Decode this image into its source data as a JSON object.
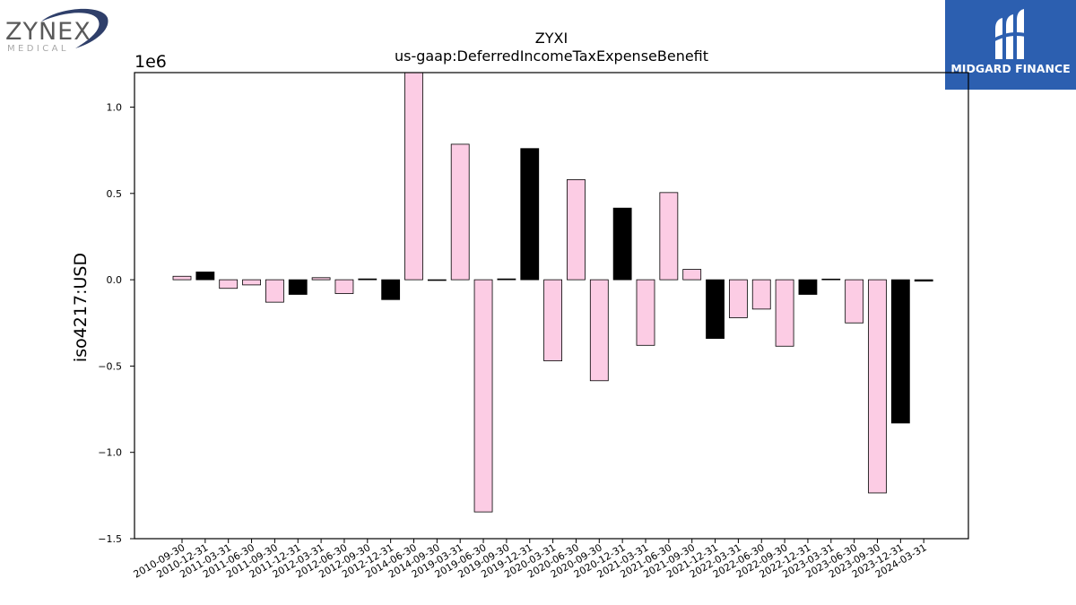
{
  "logos": {
    "left": {
      "name": "ZYNEX",
      "sub": "MEDICAL"
    },
    "right": {
      "name": "MIDGARD FINANCE"
    }
  },
  "chart_data": {
    "type": "bar",
    "title": "ZYXI",
    "subtitle": "us-gaap:DeferredIncomeTaxExpenseBenefit",
    "xlabel": "",
    "ylabel": "iso4217:USD",
    "y_multiplier_label": "1e6",
    "ylim": [
      -1.5,
      1.2
    ],
    "yticks": [
      -1.5,
      -1.0,
      -0.5,
      0.0,
      0.5,
      1.0
    ],
    "ytick_labels": [
      "−1.5",
      "−1.0",
      "−0.5",
      "0.0",
      "0.5",
      "1.0"
    ],
    "grid": false,
    "legend": "none",
    "colors": {
      "pink": "#fccce4",
      "black": "#000000",
      "edge": "#000000"
    },
    "categories": [
      "2010-09-30",
      "2010-12-31",
      "2011-03-31",
      "2011-06-30",
      "2011-09-30",
      "2011-12-31",
      "2012-03-31",
      "2012-06-30",
      "2012-09-30",
      "2012-12-31",
      "2014-06-30",
      "2014-09-30",
      "2019-03-31",
      "2019-06-30",
      "2019-09-30",
      "2019-12-31",
      "2020-03-31",
      "2020-06-30",
      "2020-09-30",
      "2020-12-31",
      "2021-03-31",
      "2021-06-30",
      "2021-09-30",
      "2021-12-31",
      "2022-03-31",
      "2022-06-30",
      "2022-09-30",
      "2022-12-31",
      "2023-03-31",
      "2023-06-30",
      "2023-09-30",
      "2023-12-31",
      "2024-03-31"
    ],
    "values": [
      0.02,
      0.045,
      -0.05,
      -0.03,
      -0.13,
      -0.085,
      0.012,
      -0.08,
      0.005,
      -0.115,
      1.21,
      -0.003,
      0.785,
      -1.345,
      0.005,
      0.76,
      -0.47,
      0.58,
      -0.585,
      0.415,
      -0.38,
      0.505,
      0.06,
      -0.34,
      -0.22,
      -0.17,
      -0.385,
      -0.085,
      0.004,
      -0.25,
      -1.235,
      -0.83,
      -0.008
    ],
    "bar_colors": [
      "pink",
      "black",
      "pink",
      "pink",
      "pink",
      "black",
      "pink",
      "pink",
      "black",
      "black",
      "pink",
      "black",
      "pink",
      "pink",
      "black",
      "black",
      "pink",
      "pink",
      "pink",
      "black",
      "pink",
      "pink",
      "pink",
      "black",
      "pink",
      "pink",
      "pink",
      "black",
      "black",
      "pink",
      "pink",
      "black",
      "black"
    ]
  }
}
